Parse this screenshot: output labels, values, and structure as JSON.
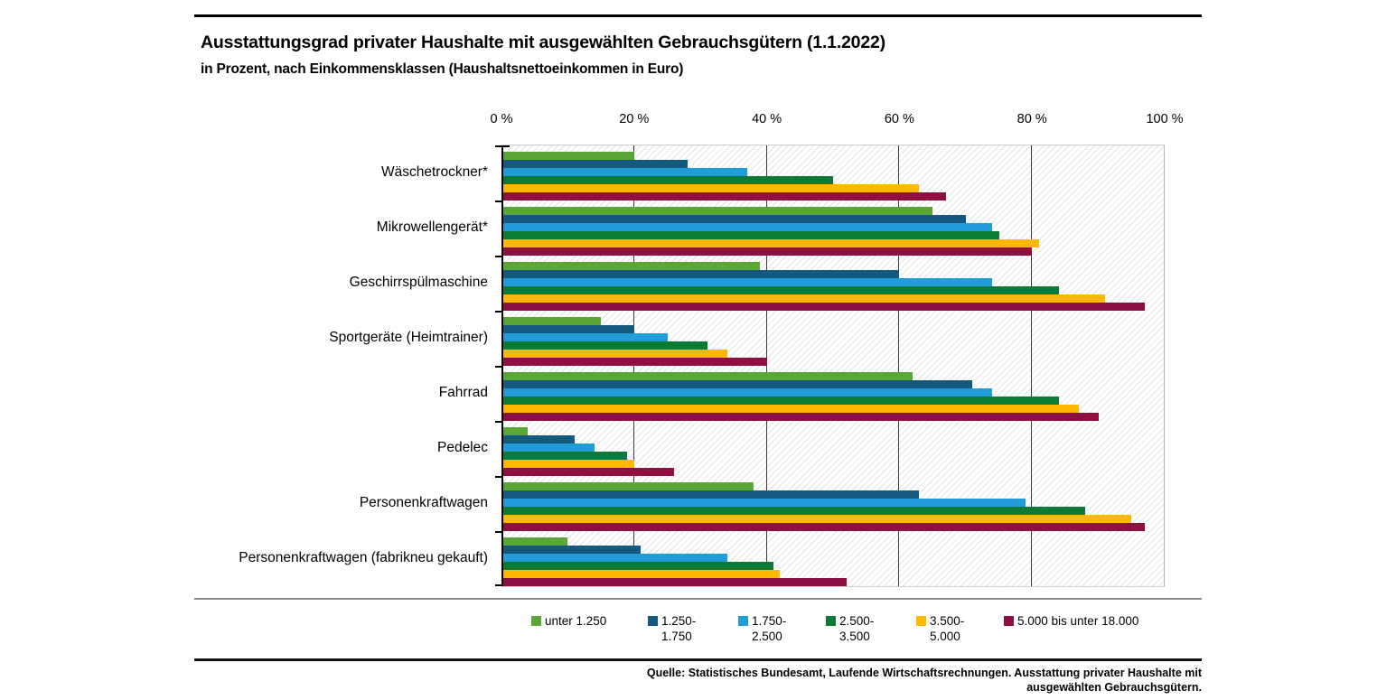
{
  "header": {
    "title": "Ausstattungsgrad privater Haushalte mit ausgewählten Gebrauchsgütern (1.1.2022)",
    "subtitle": "in Prozent, nach Einkommensklassen (Haushaltsnettoeinkommen in Euro)"
  },
  "chart_data": {
    "type": "bar",
    "orientation": "horizontal",
    "unit": "percent",
    "xlim": [
      0,
      100
    ],
    "x_ticks": [
      "0 %",
      "20 %",
      "40 %",
      "60 %",
      "80 %",
      "100 %"
    ],
    "x_tick_values": [
      0,
      20,
      40,
      60,
      80,
      100
    ],
    "grid": "vertical-on",
    "legend_position": "bottom",
    "plot_background": "white-diagonal-hatch",
    "categories": [
      "Wäschetrockner*",
      "Mikrowellengerät*",
      "Geschirrspülmaschine",
      "Sportgeräte (Heimtrainer)",
      "Fahrrad",
      "Pedelec",
      "Personenkraftwagen",
      "Personenkraftwagen (fabrikneu gekauft)"
    ],
    "series": [
      {
        "name": "unter 1.250",
        "legend_lines": [
          "unter 1.250"
        ],
        "color": "#5AA636",
        "values": [
          20,
          65,
          39,
          15,
          62,
          4,
          38,
          10
        ]
      },
      {
        "name": "1.250-1.750",
        "legend_lines": [
          "1.250-",
          "1.750"
        ],
        "color": "#15597E",
        "values": [
          28,
          70,
          60,
          20,
          71,
          11,
          63,
          21
        ]
      },
      {
        "name": "1.750-2.500",
        "legend_lines": [
          "1.750-",
          "2.500"
        ],
        "color": "#209DD8",
        "values": [
          37,
          74,
          74,
          25,
          74,
          14,
          79,
          34
        ]
      },
      {
        "name": "2.500-3.500",
        "legend_lines": [
          "2.500-",
          "3.500"
        ],
        "color": "#0D7A35",
        "values": [
          50,
          75,
          84,
          31,
          84,
          19,
          88,
          41
        ]
      },
      {
        "name": "3.500-5.000",
        "legend_lines": [
          "3.500-",
          "5.000"
        ],
        "color": "#FCB900",
        "values": [
          63,
          81,
          91,
          34,
          87,
          20,
          95,
          42
        ]
      },
      {
        "name": "5.000 bis unter 18.000",
        "legend_lines": [
          "5.000 bis unter 18.000"
        ],
        "color": "#8E0F42",
        "values": [
          67,
          80,
          97,
          40,
          90,
          26,
          97,
          52
        ]
      }
    ]
  },
  "footer": {
    "source_line1": "Quelle: Statistisches Bundesamt, Laufende Wirtschaftsrechnungen. Ausstattung privater Haushalte mit",
    "source_line2": "ausgewählten Gebrauchsgütern."
  }
}
